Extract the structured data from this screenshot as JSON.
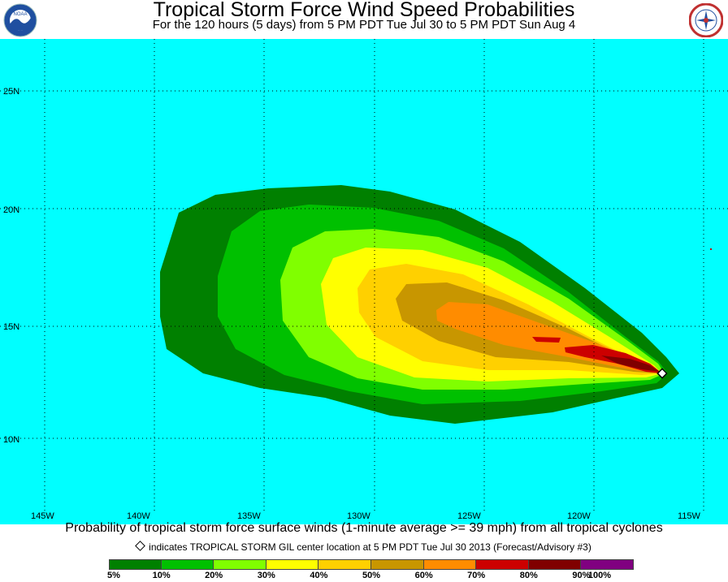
{
  "header": {
    "title": "Tropical Storm Force Wind Speed Probabilities",
    "subtitle": "For the 120 hours (5 days) from 5 PM PDT Tue Jul 30 to 5 PM PDT Sun Aug 4"
  },
  "logos": {
    "left": "NOAA",
    "right": "NATIONAL WEATHER SERVICE"
  },
  "map": {
    "ocean_color": "#00ffff",
    "latitude_labels": [
      "25N",
      "20N",
      "15N",
      "10N"
    ],
    "longitude_labels": [
      "145W",
      "140W",
      "135W",
      "130W",
      "125W",
      "120W",
      "115W"
    ],
    "storm_center_marker": "diamond"
  },
  "footer": {
    "caption": "Probability of tropical storm force surface winds (1-minute average >= 39 mph) from all tropical cyclones",
    "note": "indicates TROPICAL STORM GIL center location at 5 PM PDT Tue Jul 30 2013 (Forecast/Advisory #3)"
  },
  "legend": {
    "colors": [
      "#008000",
      "#00c000",
      "#80ff00",
      "#ffff00",
      "#ffd000",
      "#c89600",
      "#ff8c00",
      "#cc0000",
      "#800000",
      "#800080"
    ],
    "labels": [
      "5%",
      "10%",
      "20%",
      "30%",
      "40%",
      "50%",
      "60%",
      "70%",
      "80%",
      "90%",
      "100%"
    ]
  }
}
